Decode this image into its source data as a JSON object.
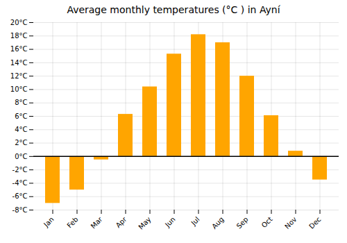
{
  "chart_data": {
    "type": "bar",
    "title": "Average monthly temperatures (°C ) in Ayní",
    "categories": [
      "Jan",
      "Feb",
      "Mar",
      "Apr",
      "May",
      "Jun",
      "Jul",
      "Aug",
      "Sep",
      "Oct",
      "Nov",
      "Dec"
    ],
    "values": [
      -7.0,
      -5.0,
      -0.5,
      6.3,
      10.4,
      15.3,
      18.2,
      17.0,
      12.0,
      6.1,
      0.8,
      -3.5
    ],
    "color": "#FFA500",
    "ylim": [
      -8,
      20
    ],
    "yticks": [
      {
        "value": -8,
        "label": "-8°C"
      },
      {
        "value": -6,
        "label": "-6°C"
      },
      {
        "value": -4,
        "label": "-4°C"
      },
      {
        "value": -2,
        "label": "-2°C"
      },
      {
        "value": 0,
        "label": "0°C"
      },
      {
        "value": 2,
        "label": "2°C"
      },
      {
        "value": 4,
        "label": "4°C"
      },
      {
        "value": 6,
        "label": "6°C"
      },
      {
        "value": 8,
        "label": "8°C"
      },
      {
        "value": 10,
        "label": "10°C"
      },
      {
        "value": 12,
        "label": "12°C"
      },
      {
        "value": 14,
        "label": "14°C"
      },
      {
        "value": 16,
        "label": "16°C"
      },
      {
        "value": 18,
        "label": "18°C"
      },
      {
        "value": 20,
        "label": "20°C"
      }
    ],
    "grid": true
  }
}
